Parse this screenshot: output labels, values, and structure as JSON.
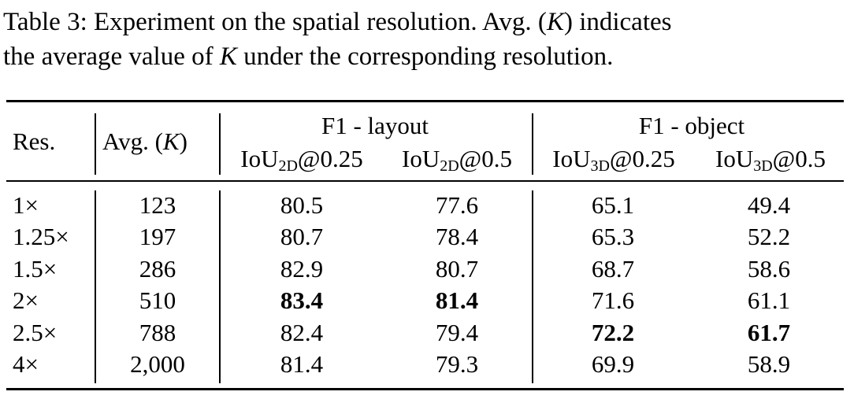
{
  "caption": {
    "line1_a": "Table 3: Experiment on the spatial resolution. Avg. (",
    "line1_k": "K",
    "line1_b": ") indicates",
    "line2_a": "the average value of ",
    "line2_k": "K",
    "line2_b": " under the corresponding resolution."
  },
  "header": {
    "res": "Res.",
    "avg_a": "Avg. (",
    "avg_k": "K",
    "avg_b": ")",
    "group_layout": "F1 - layout",
    "group_object": "F1 - object",
    "iou": "IoU",
    "sub_2d": "2D",
    "sub_3d": "3D",
    "thr_025": "@0.25",
    "thr_05": "@0.5"
  },
  "rows": [
    {
      "res": "1×",
      "avg": "123",
      "l025": "80.5",
      "l05": "77.6",
      "o025": "65.1",
      "o05": "49.4"
    },
    {
      "res": "1.25×",
      "avg": "197",
      "l025": "80.7",
      "l05": "78.4",
      "o025": "65.3",
      "o05": "52.2"
    },
    {
      "res": "1.5×",
      "avg": "286",
      "l025": "82.9",
      "l05": "80.7",
      "o025": "68.7",
      "o05": "58.6"
    },
    {
      "res": "2×",
      "avg": "510",
      "l025": "83.4",
      "l05": "81.4",
      "o025": "71.6",
      "o05": "61.1"
    },
    {
      "res": "2.5×",
      "avg": "788",
      "l025": "82.4",
      "l05": "79.4",
      "o025": "72.2",
      "o05": "61.7"
    },
    {
      "res": "4×",
      "avg": "2,000",
      "l025": "81.4",
      "l05": "79.3",
      "o025": "69.9",
      "o05": "58.9"
    }
  ]
}
